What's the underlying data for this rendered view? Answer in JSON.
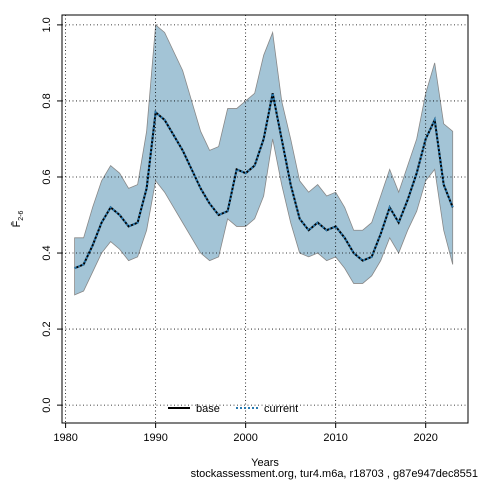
{
  "chart_data": {
    "type": "line",
    "xlabel": "Years",
    "ylabel": "F̄",
    "ylabel_subscript": "2-6",
    "footer": "stockassessment.org, tur4.m6a, r18703 , g87e947dec8551",
    "x": [
      1981,
      1982,
      1983,
      1984,
      1985,
      1986,
      1987,
      1988,
      1989,
      1990,
      1991,
      1992,
      1993,
      1994,
      1995,
      1996,
      1997,
      1998,
      1999,
      2000,
      2001,
      2002,
      2003,
      2004,
      2005,
      2006,
      2007,
      2008,
      2009,
      2010,
      2011,
      2012,
      2013,
      2014,
      2015,
      2016,
      2017,
      2018,
      2019,
      2020,
      2021,
      2022,
      2023
    ],
    "series": [
      {
        "name": "base",
        "color": "#000000",
        "dash": false,
        "values": [
          0.36,
          0.37,
          0.42,
          0.48,
          0.52,
          0.5,
          0.47,
          0.48,
          0.57,
          0.77,
          0.75,
          0.71,
          0.67,
          0.62,
          0.57,
          0.53,
          0.5,
          0.51,
          0.62,
          0.61,
          0.63,
          0.7,
          0.82,
          0.7,
          0.58,
          0.49,
          0.46,
          0.48,
          0.46,
          0.47,
          0.44,
          0.4,
          0.38,
          0.39,
          0.45,
          0.52,
          0.48,
          0.54,
          0.61,
          0.7,
          0.75,
          0.58,
          0.52
        ]
      },
      {
        "name": "current",
        "color": "#2a7ab0",
        "dash": true,
        "values": [
          0.36,
          0.37,
          0.42,
          0.48,
          0.52,
          0.5,
          0.47,
          0.48,
          0.57,
          0.77,
          0.75,
          0.71,
          0.67,
          0.62,
          0.57,
          0.53,
          0.5,
          0.51,
          0.62,
          0.61,
          0.63,
          0.7,
          0.82,
          0.7,
          0.58,
          0.49,
          0.46,
          0.48,
          0.46,
          0.47,
          0.44,
          0.4,
          0.38,
          0.39,
          0.45,
          0.52,
          0.48,
          0.54,
          0.61,
          0.7,
          0.75,
          0.58,
          0.52
        ]
      }
    ],
    "band": {
      "color": "#a3c4d6",
      "upper": [
        0.44,
        0.44,
        0.52,
        0.59,
        0.63,
        0.61,
        0.57,
        0.58,
        0.72,
        1.0,
        0.98,
        0.93,
        0.88,
        0.8,
        0.72,
        0.67,
        0.68,
        0.78,
        0.78,
        0.8,
        0.82,
        0.92,
        0.98,
        0.8,
        0.7,
        0.59,
        0.56,
        0.58,
        0.55,
        0.56,
        0.52,
        0.46,
        0.46,
        0.48,
        0.55,
        0.62,
        0.56,
        0.63,
        0.7,
        0.82,
        0.9,
        0.74,
        0.72
      ],
      "lower": [
        0.29,
        0.3,
        0.35,
        0.4,
        0.43,
        0.41,
        0.38,
        0.39,
        0.46,
        0.59,
        0.56,
        0.52,
        0.48,
        0.44,
        0.4,
        0.38,
        0.39,
        0.49,
        0.47,
        0.47,
        0.49,
        0.55,
        0.7,
        0.58,
        0.48,
        0.4,
        0.39,
        0.4,
        0.38,
        0.39,
        0.36,
        0.32,
        0.32,
        0.34,
        0.38,
        0.44,
        0.4,
        0.46,
        0.51,
        0.59,
        0.62,
        0.46,
        0.37
      ]
    },
    "xlim": [
      1979.6,
      2024.7
    ],
    "ylim": [
      -0.047,
      1.026
    ],
    "xticks": [
      1980,
      1990,
      2000,
      2010,
      2020
    ],
    "yticks": [
      {
        "value": 0,
        "label": "0.0"
      },
      0.2,
      0.4,
      0.6,
      0.8,
      {
        "value": 1,
        "label": "1.0"
      }
    ],
    "grid": true,
    "legend": "bottom"
  }
}
